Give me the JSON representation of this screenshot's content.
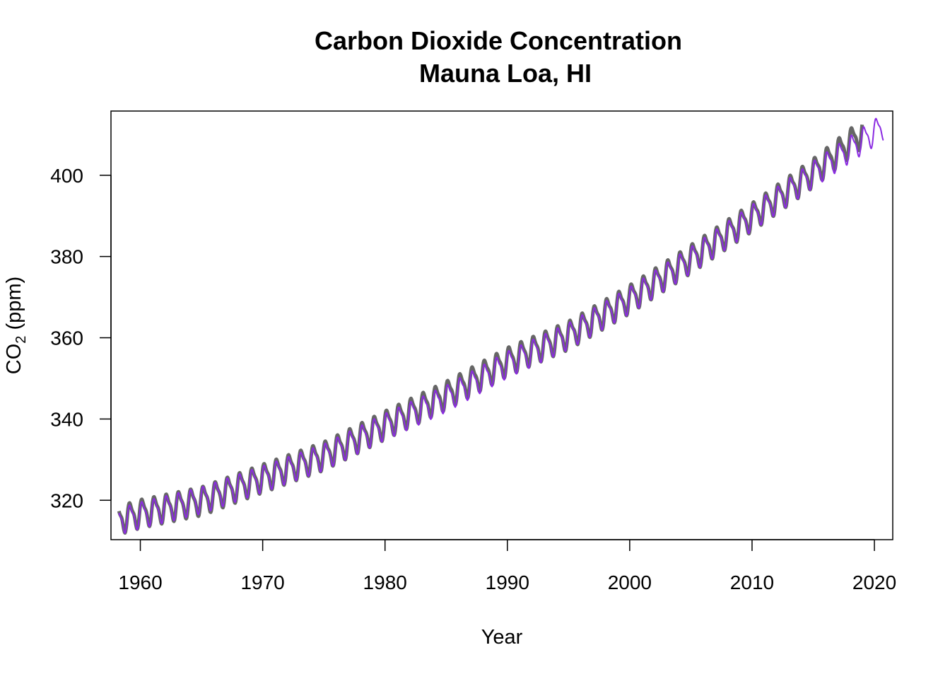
{
  "chart_data": {
    "type": "line",
    "title": "Carbon Dioxide Concentration",
    "subtitle": "Mauna Loa, HI",
    "xlabel": "Year",
    "ylabel": {
      "prefix": "CO",
      "subscript": "2",
      "suffix": " (ppm)"
    },
    "xlim": [
      1957.6,
      2021.5
    ],
    "ylim": [
      310.3,
      415.8
    ],
    "xticks": [
      1960,
      1970,
      1980,
      1990,
      2000,
      2010,
      2020
    ],
    "yticks": [
      320,
      340,
      360,
      380,
      400
    ],
    "grid": false,
    "legend": "none",
    "series": [
      {
        "color": "#666666",
        "line_style": "thick",
        "x_start": 1958.25,
        "x_end": 2019.0,
        "seasonal_amplitude_ppm": 3.1,
        "trend_knots": [
          {
            "x": 1958.25,
            "y": 315.3
          },
          {
            "x": 1960,
            "y": 316.9
          },
          {
            "x": 1965,
            "y": 320.0
          },
          {
            "x": 1970,
            "y": 325.6
          },
          {
            "x": 1975,
            "y": 331.1
          },
          {
            "x": 1980,
            "y": 338.7
          },
          {
            "x": 1985,
            "y": 346.0
          },
          {
            "x": 1990,
            "y": 354.3
          },
          {
            "x": 1995,
            "y": 360.8
          },
          {
            "x": 2000,
            "y": 369.7
          },
          {
            "x": 2005,
            "y": 379.6
          },
          {
            "x": 2010,
            "y": 389.9
          },
          {
            "x": 2015,
            "y": 400.8
          },
          {
            "x": 2019.0,
            "y": 410.5
          }
        ]
      },
      {
        "color": "#8b2be2",
        "line_style": "thin",
        "x_start": 1958.25,
        "x_end": 2020.75,
        "seasonal_amplitude_ppm": 2.9,
        "trend_knots": [
          {
            "x": 1958.25,
            "y": 315.0
          },
          {
            "x": 1960,
            "y": 316.5
          },
          {
            "x": 1965,
            "y": 320.2
          },
          {
            "x": 1970,
            "y": 325.4
          },
          {
            "x": 1975,
            "y": 330.8
          },
          {
            "x": 1980,
            "y": 338.3
          },
          {
            "x": 1985,
            "y": 345.2
          },
          {
            "x": 1990,
            "y": 353.6
          },
          {
            "x": 1995,
            "y": 360.6
          },
          {
            "x": 2000,
            "y": 369.4
          },
          {
            "x": 2005,
            "y": 379.3
          },
          {
            "x": 2010,
            "y": 389.7
          },
          {
            "x": 2015,
            "y": 400.4
          },
          {
            "x": 2020.75,
            "y": 412.2
          }
        ]
      }
    ]
  }
}
